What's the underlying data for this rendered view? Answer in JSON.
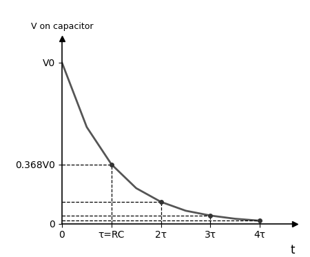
{
  "chart_data": {
    "type": "line",
    "y_label": "V on capacitor",
    "x_label": "t",
    "x": [
      0,
      0.5,
      1,
      1.5,
      2,
      2.5,
      3,
      3.5,
      4
    ],
    "series": [
      {
        "name": "V on capacitor",
        "color": "#555555",
        "line_style": "solid",
        "values": [
          1.0,
          0.6,
          0.368,
          0.22,
          0.135,
          0.08,
          0.05,
          0.03,
          0.018
        ]
      }
    ],
    "xlim": [
      0,
      4.7
    ],
    "ylim": [
      0,
      1.15
    ],
    "xticks": [
      0,
      {
        "value": 1,
        "label": "τ=RC"
      },
      {
        "value": 2,
        "label": "2τ"
      },
      {
        "value": 3,
        "label": "3τ"
      },
      {
        "value": 4,
        "label": "4τ"
      }
    ],
    "yticks": [
      0,
      {
        "value": 0.368,
        "label": "0.368V0"
      },
      {
        "value": 1,
        "label": "V0"
      }
    ],
    "grid": false
  }
}
